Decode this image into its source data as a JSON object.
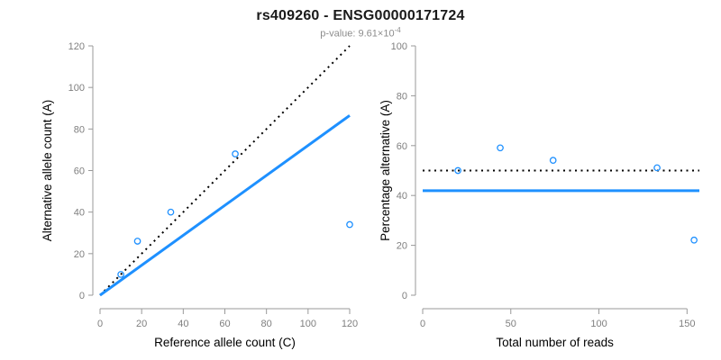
{
  "header": {
    "title": "rs409260 - ENSG00000171724",
    "subtitle_base": "p-value: 9.61×10",
    "subtitle_exponent": "-4"
  },
  "colors": {
    "accent_blue": "#1E90FF",
    "axis_line": "#999999",
    "tick_label": "#7F7F7F",
    "axis_title": "#000000",
    "dotted_line": "#000000",
    "title_text": "#1A1A1A",
    "subtitle_text": "#8C8C8C"
  },
  "chart_data": [
    {
      "id": "allele-counts",
      "type": "scatter",
      "title": "",
      "xlabel": "Reference allele count (C)",
      "ylabel": "Alternative allele count (A)",
      "xlim": [
        0,
        120
      ],
      "ylim": [
        0,
        120
      ],
      "xticks": [
        0,
        20,
        40,
        60,
        80,
        100,
        120
      ],
      "yticks": [
        0,
        20,
        40,
        60,
        80,
        100,
        120
      ],
      "grid": false,
      "marker": "open-circle",
      "points": [
        [
          10,
          10
        ],
        [
          18,
          26
        ],
        [
          34,
          40
        ],
        [
          65,
          68
        ],
        [
          120,
          34
        ]
      ],
      "lines": [
        {
          "name": "identity-line",
          "style": "dotted",
          "color_key": "dotted_line",
          "x1": 0,
          "y1": 0,
          "x2": 120,
          "y2": 120
        },
        {
          "name": "fit-line",
          "style": "solid",
          "color_key": "accent_blue",
          "x1": 0,
          "y1": 0,
          "x2": 120,
          "y2": 86.5
        }
      ]
    },
    {
      "id": "percentage-alternative",
      "type": "scatter",
      "title": "",
      "xlabel": "Total number of reads",
      "ylabel": "Percentage alternative (A)",
      "xlim": [
        0,
        157
      ],
      "ylim": [
        0,
        100
      ],
      "xticks": [
        0,
        50,
        100,
        150
      ],
      "yticks": [
        0,
        20,
        40,
        60,
        80,
        100
      ],
      "grid": false,
      "marker": "open-circle",
      "points": [
        [
          20,
          50
        ],
        [
          44,
          59.1
        ],
        [
          74,
          54.1
        ],
        [
          133,
          51.1
        ],
        [
          154,
          22.1
        ]
      ],
      "lines": [
        {
          "name": "expected-50-percent-line",
          "style": "dotted",
          "color_key": "dotted_line",
          "x1": 0,
          "y1": 50,
          "x2": 157,
          "y2": 50
        },
        {
          "name": "mean-percentage-line",
          "style": "solid",
          "color_key": "accent_blue",
          "x1": 0,
          "y1": 41.9,
          "x2": 157,
          "y2": 41.9
        }
      ]
    }
  ]
}
